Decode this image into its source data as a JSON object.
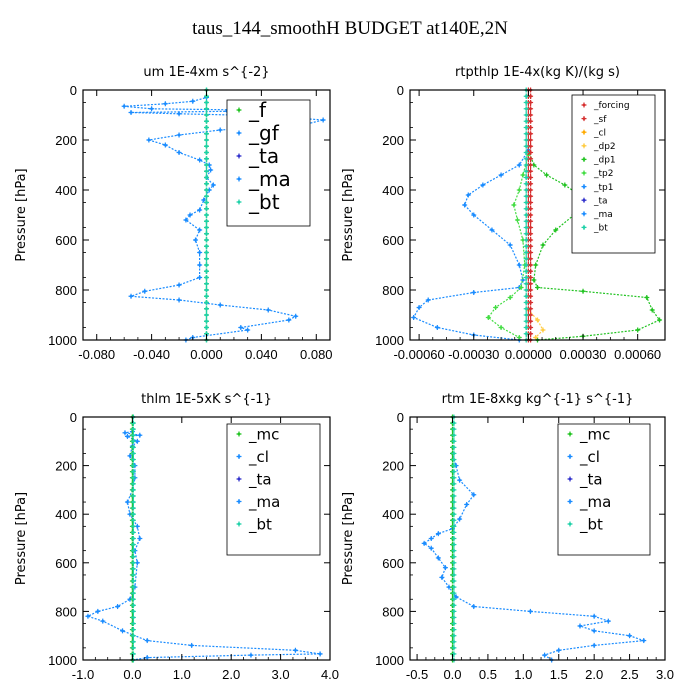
{
  "figure_title": "taus_144_smoothH  BUDGET at140E,2N",
  "chart_data": [
    {
      "type": "line",
      "title": "um  1E-4xm s^{-2}",
      "ylabel": "Pressure [hPa]",
      "xlim": [
        -0.09,
        0.09
      ],
      "ylim": [
        1000,
        0
      ],
      "xticks": [
        -0.08,
        -0.04,
        0.0,
        0.04,
        0.08
      ],
      "xtick_labels": [
        "-0.080",
        "-0.040",
        "0.000",
        "0.040",
        "0.080"
      ],
      "yticks": [
        0,
        200,
        400,
        600,
        800,
        1000
      ],
      "legend_font": 20,
      "legend": [
        "_f",
        "_gf",
        "_ta",
        "_ma",
        "_bt"
      ],
      "series": [
        {
          "color": "#1a8cff",
          "points": [
            [
              -0.015,
              1000
            ],
            [
              -0.01,
              990
            ],
            [
              0.03,
              960
            ],
            [
              0.025,
              950
            ],
            [
              0.06,
              920
            ],
            [
              0.065,
              905
            ],
            [
              0.045,
              880
            ],
            [
              0.01,
              860
            ],
            [
              -0.02,
              840
            ],
            [
              -0.055,
              825
            ],
            [
              -0.045,
              805
            ],
            [
              -0.02,
              780
            ],
            [
              -0.005,
              750
            ],
            [
              -0.005,
              700
            ],
            [
              -0.005,
              650
            ],
            [
              -0.008,
              600
            ],
            [
              -0.005,
              560
            ],
            [
              -0.015,
              520
            ],
            [
              -0.012,
              500
            ],
            [
              -0.005,
              480
            ],
            [
              -0.002,
              440
            ],
            [
              0.002,
              400
            ],
            [
              0.005,
              380
            ],
            [
              0.0,
              350
            ],
            [
              0.003,
              320
            ],
            [
              0.002,
              300
            ],
            [
              -0.005,
              280
            ],
            [
              -0.02,
              250
            ],
            [
              -0.03,
              220
            ],
            [
              -0.042,
              200
            ],
            [
              -0.02,
              180
            ],
            [
              0.01,
              160
            ],
            [
              0.04,
              150
            ],
            [
              0.07,
              140
            ],
            [
              0.085,
              120
            ],
            [
              0.06,
              110
            ],
            [
              0.02,
              100
            ],
            [
              -0.02,
              95
            ],
            [
              -0.055,
              90
            ],
            [
              0.015,
              85
            ],
            [
              0.03,
              80
            ],
            [
              -0.04,
              75
            ],
            [
              -0.06,
              65
            ],
            [
              -0.03,
              55
            ],
            [
              -0.01,
              45
            ],
            [
              0.0,
              30
            ]
          ]
        },
        {
          "color": "#22c322",
          "points": [
            [
              0,
              0
            ],
            [
              0,
              1000
            ]
          ]
        },
        {
          "color": "#1fd1a8",
          "points": [
            [
              0,
              0
            ],
            [
              0,
              1000
            ]
          ]
        }
      ]
    },
    {
      "type": "line",
      "title": "rtpthlp  1E-4x(kg K)/(kg s)",
      "ylabel": "Pressure [hPa]",
      "xlim": [
        -0.00065,
        0.00075
      ],
      "ylim": [
        1000,
        0
      ],
      "xticks": [
        -0.0006,
        -0.0003,
        0.0,
        0.0003,
        0.0006
      ],
      "xtick_labels": [
        "-0.00060",
        "-0.00030",
        "0.00000",
        "0.00030",
        "0.00060"
      ],
      "yticks": [
        0,
        200,
        400,
        600,
        800,
        1000
      ],
      "legend_font": 9,
      "legend": [
        "_forcing",
        "_sf",
        "_cl",
        "_dp2",
        "_dp1",
        "_tp2",
        "_tp1",
        "_ta",
        "_ma",
        "_bt"
      ],
      "series": [
        {
          "color": "#22c322",
          "points": [
            [
              0,
              240
            ],
            [
              3e-05,
              300
            ],
            [
              0.0001,
              340
            ],
            [
              0.0002,
              380
            ],
            [
              0.00028,
              420
            ],
            [
              0.0003,
              460
            ],
            [
              0.00025,
              500
            ],
            [
              0.00015,
              560
            ],
            [
              8e-05,
              620
            ],
            [
              4e-05,
              700
            ],
            [
              3e-05,
              760
            ],
            [
              5e-05,
              790
            ],
            [
              0.0003,
              805
            ],
            [
              0.00065,
              830
            ],
            [
              0.00068,
              880
            ],
            [
              0.00072,
              920
            ],
            [
              0.0006,
              960
            ],
            [
              0.0003,
              985
            ],
            [
              5e-05,
              1000
            ]
          ]
        },
        {
          "color": "#1a8cff",
          "points": [
            [
              0,
              240
            ],
            [
              -5e-05,
              300
            ],
            [
              -0.00015,
              340
            ],
            [
              -0.00025,
              380
            ],
            [
              -0.00033,
              420
            ],
            [
              -0.00035,
              460
            ],
            [
              -0.0003,
              500
            ],
            [
              -0.0002,
              560
            ],
            [
              -0.0001,
              620
            ],
            [
              -5e-05,
              700
            ],
            [
              -3e-05,
              760
            ],
            [
              -5e-05,
              790
            ],
            [
              -0.0003,
              810
            ],
            [
              -0.00055,
              840
            ],
            [
              -0.0006,
              870
            ],
            [
              -0.00063,
              910
            ],
            [
              -0.0005,
              950
            ],
            [
              -0.0003,
              980
            ],
            [
              -5e-05,
              1000
            ]
          ]
        },
        {
          "color": "#44dd44",
          "points": [
            [
              0,
              260
            ],
            [
              -3e-05,
              340
            ],
            [
              -5e-05,
              400
            ],
            [
              -8e-05,
              460
            ],
            [
              -6e-05,
              520
            ],
            [
              -3e-05,
              600
            ],
            [
              -2e-05,
              700
            ],
            [
              -4e-05,
              790
            ],
            [
              -0.0001,
              830
            ],
            [
              -0.00018,
              870
            ],
            [
              -0.00022,
              910
            ],
            [
              -0.00015,
              950
            ],
            [
              -5e-05,
              990
            ]
          ]
        },
        {
          "color": "#ffcc44",
          "points": [
            [
              0,
              880
            ],
            [
              5e-05,
              920
            ],
            [
              8e-05,
              960
            ],
            [
              4e-05,
              990
            ]
          ]
        },
        {
          "color": "#d63030",
          "points": [
            [
              0,
              0
            ],
            [
              0,
              1000
            ]
          ]
        },
        {
          "color": "#d63030",
          "points": [
            [
              1.2e-05,
              0
            ],
            [
              1.2e-05,
              1000
            ]
          ]
        },
        {
          "color": "#1fd1a8",
          "points": [
            [
              -1.2e-05,
              0
            ],
            [
              -1.2e-05,
              1000
            ]
          ]
        }
      ]
    },
    {
      "type": "line",
      "title": "thlm  1E-5xK s^{-1}",
      "ylabel": "Pressure [hPa]",
      "xlim": [
        -1.0,
        4.0
      ],
      "ylim": [
        1000,
        0
      ],
      "xticks": [
        -1.0,
        0.0,
        1.0,
        2.0,
        3.0,
        4.0
      ],
      "xtick_labels": [
        "-1.0",
        "0.0",
        "1.0",
        "2.0",
        "3.0",
        "4.0"
      ],
      "yticks": [
        0,
        200,
        400,
        600,
        800,
        1000
      ],
      "legend_font": 15,
      "legend": [
        "_mc",
        "_cl",
        "_ta",
        "_ma",
        "_bt"
      ],
      "series": [
        {
          "color": "#1a8cff",
          "points": [
            [
              0.0,
              1000
            ],
            [
              0.3,
              990
            ],
            [
              2.4,
              980
            ],
            [
              3.8,
              975
            ],
            [
              3.3,
              960
            ],
            [
              1.2,
              940
            ],
            [
              0.3,
              920
            ],
            [
              -0.2,
              880
            ],
            [
              -0.6,
              840
            ],
            [
              -0.9,
              820
            ],
            [
              -0.7,
              800
            ],
            [
              -0.3,
              780
            ],
            [
              -0.05,
              750
            ],
            [
              0.05,
              700
            ],
            [
              0.1,
              600
            ],
            [
              0.05,
              550
            ],
            [
              0.15,
              500
            ],
            [
              0.1,
              450
            ],
            [
              -0.05,
              400
            ],
            [
              -0.1,
              350
            ],
            [
              0.0,
              300
            ],
            [
              0.05,
              250
            ],
            [
              0.05,
              200
            ],
            [
              -0.05,
              160
            ],
            [
              0.0,
              120
            ],
            [
              0.1,
              100
            ],
            [
              -0.1,
              80
            ],
            [
              0.15,
              75
            ],
            [
              -0.15,
              65
            ],
            [
              0.0,
              60
            ]
          ]
        },
        {
          "color": "#22c322",
          "points": [
            [
              0,
              0
            ],
            [
              0,
              1000
            ]
          ]
        },
        {
          "color": "#1fd1a8",
          "points": [
            [
              0.02,
              0
            ],
            [
              0.02,
              1000
            ]
          ]
        }
      ]
    },
    {
      "type": "line",
      "title": "rtm  1E-8xkg kg^{-1} s^{-1}",
      "ylabel": "Pressure [hPa]",
      "xlim": [
        -0.6,
        3.0
      ],
      "ylim": [
        1000,
        0
      ],
      "xticks": [
        -0.5,
        0.0,
        0.5,
        1.0,
        1.5,
        2.0,
        2.5,
        3.0
      ],
      "xtick_labels": [
        "-0.5",
        "0.0",
        "0.5",
        "1.0",
        "1.5",
        "2.0",
        "2.5",
        "3.0"
      ],
      "yticks": [
        0,
        200,
        400,
        600,
        800,
        1000
      ],
      "legend_font": 15,
      "legend": [
        "_mc",
        "_cl",
        "_ta",
        "_ma",
        "_bt"
      ],
      "series": [
        {
          "color": "#1a8cff",
          "points": [
            [
              1.4,
              1000
            ],
            [
              1.3,
              980
            ],
            [
              1.5,
              960
            ],
            [
              2.0,
              940
            ],
            [
              2.7,
              920
            ],
            [
              2.5,
              900
            ],
            [
              2.0,
              880
            ],
            [
              1.8,
              860
            ],
            [
              2.2,
              840
            ],
            [
              2.0,
              820
            ],
            [
              1.1,
              800
            ],
            [
              0.3,
              780
            ],
            [
              0.05,
              740
            ],
            [
              -0.05,
              700
            ],
            [
              -0.15,
              660
            ],
            [
              -0.1,
              620
            ],
            [
              -0.2,
              580
            ],
            [
              -0.3,
              540
            ],
            [
              -0.4,
              520
            ],
            [
              -0.3,
              500
            ],
            [
              -0.2,
              480
            ],
            [
              0.0,
              460
            ],
            [
              0.1,
              420
            ],
            [
              0.2,
              360
            ],
            [
              0.3,
              320
            ],
            [
              0.1,
              260
            ],
            [
              0.05,
              200
            ],
            [
              0.0,
              150
            ]
          ]
        },
        {
          "color": "#22c322",
          "points": [
            [
              0,
              0
            ],
            [
              0,
              1000
            ]
          ]
        },
        {
          "color": "#1fd1a8",
          "points": [
            [
              0.02,
              0
            ],
            [
              0.02,
              1000
            ]
          ]
        }
      ]
    }
  ]
}
